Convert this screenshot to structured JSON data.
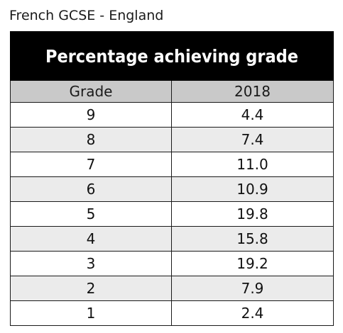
{
  "page": {
    "heading": "French GCSE - England"
  },
  "table": {
    "banner": "Percentage achieving grade",
    "columns": [
      "Grade",
      "2018"
    ],
    "rows": [
      {
        "grade": "9",
        "value": "4.4"
      },
      {
        "grade": "8",
        "value": "7.4"
      },
      {
        "grade": "7",
        "value": "11.0"
      },
      {
        "grade": "6",
        "value": "10.9"
      },
      {
        "grade": "5",
        "value": "19.8"
      },
      {
        "grade": "4",
        "value": "15.8"
      },
      {
        "grade": "3",
        "value": "19.2"
      },
      {
        "grade": "2",
        "value": "7.9"
      },
      {
        "grade": "1",
        "value": "2.4"
      }
    ]
  },
  "colors": {
    "banner_background": "#000000",
    "banner_text": "#ffffff",
    "header_background": "#c9c9c9",
    "row_alt_background": "#ebebeb",
    "border": "#1a1a1a"
  }
}
